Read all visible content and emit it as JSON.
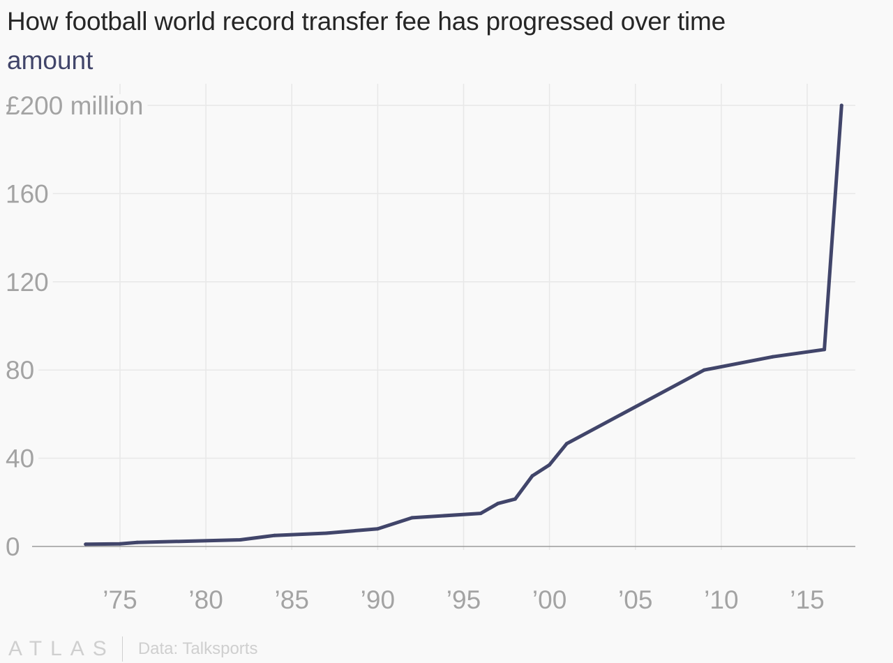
{
  "header": {
    "title": "How football world record transfer fee has progressed over time",
    "subtitle": "amount"
  },
  "footer": {
    "logo_text": "ATLAS",
    "source": "Data: Talksports"
  },
  "colors": {
    "line": "#41456a",
    "grid": "#e8e8e8",
    "axis": "#9a9a9a",
    "tick_text": "#a3a3a3"
  },
  "chart_data": {
    "type": "line",
    "title": "How football world record transfer fee has progressed over time",
    "ylabel": "amount",
    "xlabel": "",
    "ylim": [
      0,
      200
    ],
    "xlim": [
      1970,
      2018
    ],
    "y_ticks": [
      {
        "value": 0,
        "label": "0"
      },
      {
        "value": 40,
        "label": "40"
      },
      {
        "value": 80,
        "label": "80"
      },
      {
        "value": 120,
        "label": "120"
      },
      {
        "value": 160,
        "label": "160"
      },
      {
        "value": 200,
        "label": "£200 million"
      }
    ],
    "x_ticks": [
      {
        "value": 1975,
        "label": "’75"
      },
      {
        "value": 1980,
        "label": "’80"
      },
      {
        "value": 1985,
        "label": "’85"
      },
      {
        "value": 1990,
        "label": "’90"
      },
      {
        "value": 1995,
        "label": "’95"
      },
      {
        "value": 2000,
        "label": "’00"
      },
      {
        "value": 2005,
        "label": "’05"
      },
      {
        "value": 2010,
        "label": "’10"
      },
      {
        "value": 2015,
        "label": "’15"
      }
    ],
    "grid": true,
    "x": [
      1973,
      1975,
      1976,
      1982,
      1984,
      1987,
      1990,
      1992,
      1996,
      1997,
      1998,
      1999,
      2000,
      2001,
      2009,
      2013,
      2016,
      2017
    ],
    "y": [
      1,
      1.2,
      1.8,
      3,
      5,
      6,
      8,
      13,
      15,
      19.5,
      21.5,
      32,
      37,
      46.6,
      80,
      86,
      89.3,
      200
    ]
  }
}
